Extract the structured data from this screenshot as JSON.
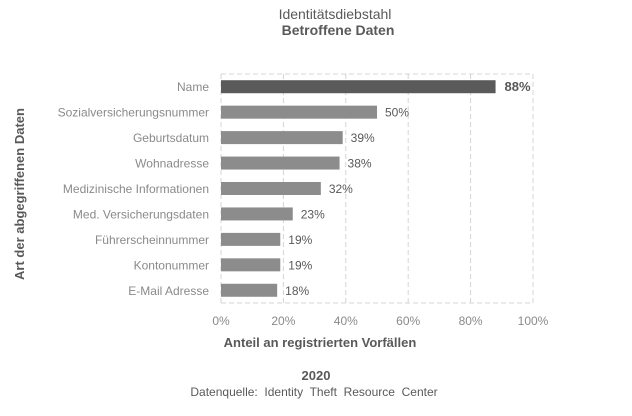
{
  "chart_data": {
    "type": "bar",
    "orientation": "horizontal",
    "title": "Identitätsdiebstahl",
    "subtitle": "Betroffene Daten",
    "xlabel": "Anteil an registrierten Vorfällen",
    "ylabel": "Art der abgegriffenen Daten",
    "xlim": [
      0,
      100
    ],
    "xticks": [
      0,
      20,
      40,
      60,
      80,
      100
    ],
    "xtick_labels": [
      "0%",
      "20%",
      "40%",
      "60%",
      "80%",
      "100%"
    ],
    "grid": true,
    "categories": [
      "Name",
      "Sozialversicherungsnummer",
      "Geburtsdatum",
      "Wohnadresse",
      "Medizinische Informationen",
      "Med. Versicherungsdaten",
      "Führerscheinnummer",
      "Kontonummer",
      "E-Mail Adresse"
    ],
    "values": [
      88,
      50,
      39,
      38,
      32,
      23,
      19,
      19,
      18
    ],
    "value_labels": [
      "88%",
      "50%",
      "39%",
      "38%",
      "32%",
      "23%",
      "19%",
      "19%",
      "18%"
    ],
    "highlight_index": 0,
    "colors": {
      "bar": "#8c8c8c",
      "highlight": "#5a5a5a",
      "grid": "#d4d4d4",
      "text": "#595959",
      "muted_text": "#8a8a8a"
    }
  },
  "footer": {
    "year": "2020",
    "source": "Datenquelle:  Identity  Theft  Resource  Center"
  }
}
